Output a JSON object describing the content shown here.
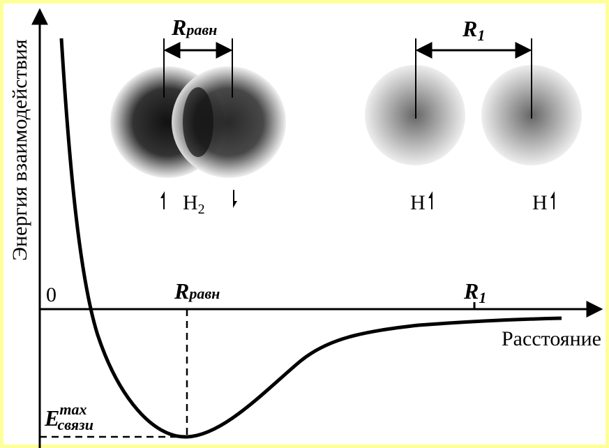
{
  "axes": {
    "y_label": "Энергия взаимодействия",
    "x_label": "Расстояние",
    "origin": "0"
  },
  "markers": {
    "r_eq": {
      "symbol": "R",
      "subscript": "равн"
    },
    "r_1": {
      "symbol": "R",
      "subscript": "1"
    }
  },
  "energy_label": {
    "symbol": "E",
    "superscript": "max",
    "subscript": "связи"
  },
  "molecules": {
    "h2": {
      "symbol": "H",
      "subscript": "2"
    },
    "atoms": [
      "H",
      "H"
    ]
  }
}
